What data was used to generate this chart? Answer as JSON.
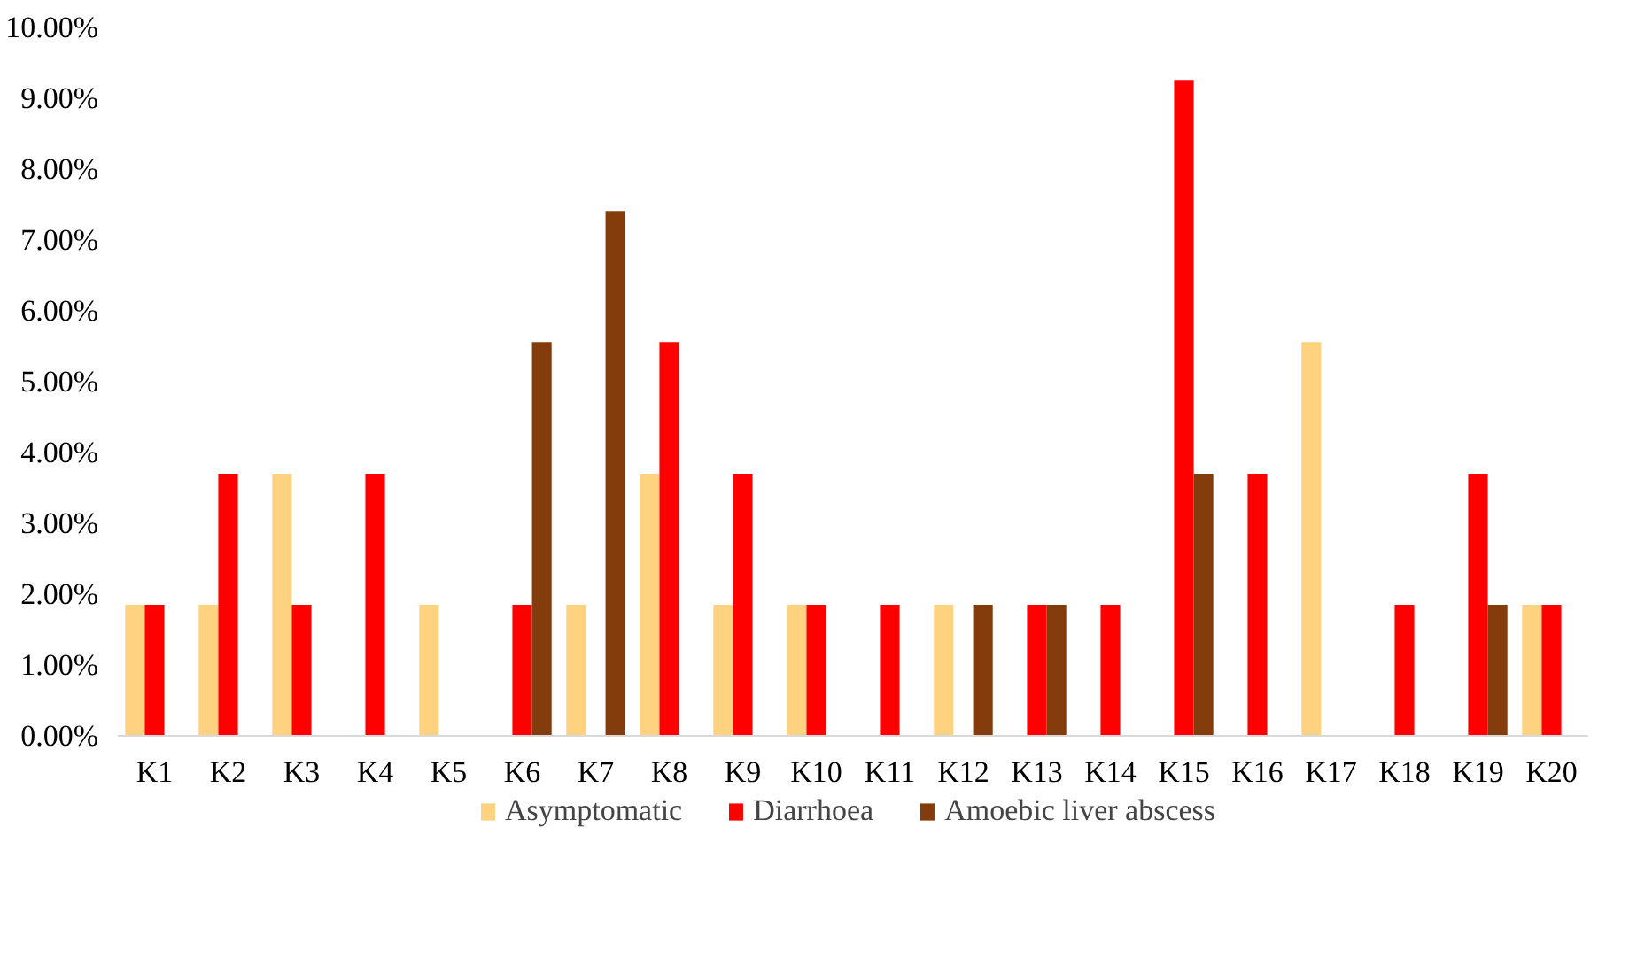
{
  "chart_data": {
    "type": "bar",
    "categories": [
      "K1",
      "K2",
      "K3",
      "K4",
      "K5",
      "K6",
      "K7",
      "K8",
      "K9",
      "K10",
      "K11",
      "K12",
      "K13",
      "K14",
      "K15",
      "K16",
      "K17",
      "K18",
      "K19",
      "K20"
    ],
    "series": [
      {
        "name": "Asymptomatic",
        "color": "#ffd27f",
        "values": [
          1.85,
          1.85,
          3.7,
          0,
          1.85,
          0,
          1.85,
          3.7,
          1.85,
          1.85,
          0,
          1.85,
          0,
          0,
          0,
          0,
          5.56,
          0,
          0,
          1.85
        ]
      },
      {
        "name": "Diarrhoea",
        "color": "#ff0000",
        "values": [
          1.85,
          3.7,
          1.85,
          3.7,
          0,
          1.85,
          0,
          5.56,
          3.7,
          1.85,
          1.85,
          0,
          1.85,
          1.85,
          9.26,
          3.7,
          0,
          1.85,
          3.7,
          1.85
        ]
      },
      {
        "name": "Amoebic liver abscess",
        "color": "#843c0c",
        "values": [
          0,
          0,
          0,
          0,
          0,
          5.56,
          7.41,
          0,
          0,
          0,
          0,
          1.85,
          1.85,
          0,
          3.7,
          0,
          0,
          0,
          1.85,
          0
        ]
      }
    ],
    "ylim": [
      0,
      10
    ],
    "yticks": [
      {
        "value": 0,
        "label": "0.00%"
      },
      {
        "value": 1,
        "label": "1.00%"
      },
      {
        "value": 2,
        "label": "2.00%"
      },
      {
        "value": 3,
        "label": "3.00%"
      },
      {
        "value": 4,
        "label": "4.00%"
      },
      {
        "value": 5,
        "label": "5.00%"
      },
      {
        "value": 6,
        "label": "6.00%"
      },
      {
        "value": 7,
        "label": "7.00%"
      },
      {
        "value": 8,
        "label": "8.00%"
      },
      {
        "value": 9,
        "label": "9.00%"
      },
      {
        "value": 10,
        "label": "10.00%"
      }
    ],
    "grid": false,
    "legend": "bottom"
  }
}
